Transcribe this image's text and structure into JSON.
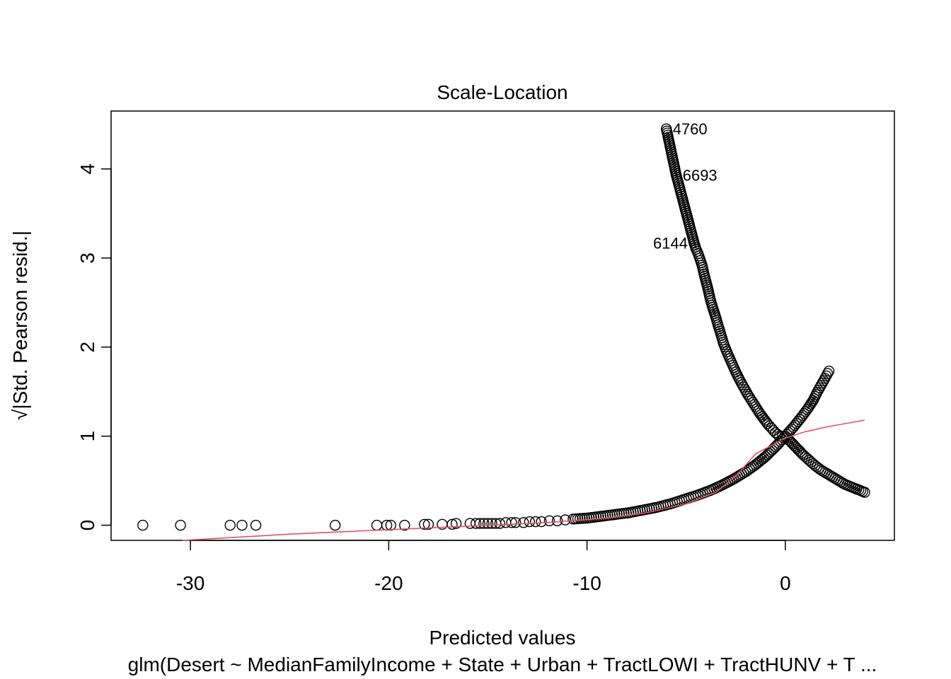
{
  "chart_data": {
    "type": "scatter",
    "title": "Scale-Location",
    "xlabel": "Predicted values",
    "ylabel": "√|Std. Pearson resid.|",
    "subtitle": "glm(Desert ~ MedianFamilyIncome + State + Urban + TractLOWI + TractHUNV + T ...",
    "xlim": [
      -34,
      5.5
    ],
    "ylim": [
      -0.17,
      4.65
    ],
    "xticks": [
      -30,
      -20,
      -10,
      0
    ],
    "yticks": [
      0,
      1,
      2,
      3,
      4
    ],
    "grid": false,
    "series": [
      {
        "type": "points",
        "x": [
          -32.4,
          -30.5,
          -28.0,
          -27.4,
          -26.7,
          -22.7,
          -20.6,
          -20.1,
          -19.9,
          -19.2,
          -18.2,
          -18.0,
          -17.3,
          -16.8,
          -16.6,
          -15.9,
          -15.6,
          -15.4,
          -15.2,
          -15.0,
          -14.8,
          -14.6,
          -14.4,
          -14.1,
          -13.8,
          -13.6,
          -13.2,
          -12.9,
          -12.6,
          -12.3,
          -11.9,
          -11.5,
          -11.1
        ],
        "y": [
          0.0,
          0.0,
          0.0,
          0.0,
          0.0,
          0.0,
          0.0,
          0.0,
          0.0,
          0.0,
          0.01,
          0.01,
          0.01,
          0.01,
          0.02,
          0.02,
          0.02,
          0.02,
          0.02,
          0.02,
          0.02,
          0.02,
          0.02,
          0.03,
          0.03,
          0.03,
          0.03,
          0.04,
          0.04,
          0.04,
          0.05,
          0.05,
          0.06
        ]
      },
      {
        "type": "points",
        "x": [
          -6.0,
          -5.5,
          -4.6,
          -4.5,
          -4.4,
          -4.2,
          -4.1,
          -3.9,
          -3.8,
          -3.7,
          -3.6,
          -3.5,
          -3.4,
          -3.3,
          -3.1,
          -2.9,
          -2.7,
          -2.5,
          -2.3,
          -2.1,
          -1.9,
          -1.7,
          -1.5,
          -1.3,
          -1.1,
          -0.9,
          -0.7,
          -0.5,
          -0.3,
          0.0,
          0.3,
          0.6,
          0.9,
          1.2,
          1.5,
          1.8,
          2.1,
          2.4,
          2.7,
          3.0,
          4.0
        ],
        "y": [
          4.45,
          3.93,
          3.17,
          3.1,
          3.05,
          2.92,
          2.82,
          2.65,
          2.55,
          2.47,
          2.4,
          2.33,
          2.25,
          2.18,
          2.03,
          1.92,
          1.82,
          1.72,
          1.63,
          1.55,
          1.47,
          1.4,
          1.33,
          1.26,
          1.2,
          1.14,
          1.09,
          1.04,
          1.0,
          1.0,
          0.93,
          0.86,
          0.79,
          0.73,
          0.67,
          0.62,
          0.58,
          0.54,
          0.5,
          0.46,
          0.37
        ]
      },
      {
        "type": "points",
        "x": [
          -10.7,
          -10.0,
          -9.3,
          -8.6,
          -7.9,
          -7.2,
          -6.5,
          -5.8,
          -5.1,
          -4.4,
          -3.8,
          -3.2,
          -2.6,
          -2.0,
          -1.5,
          -1.0,
          -0.5,
          0.0,
          0.4,
          0.8,
          1.1,
          1.4,
          1.6,
          1.8,
          2.0,
          2.2
        ],
        "y": [
          0.07,
          0.08,
          0.1,
          0.12,
          0.14,
          0.17,
          0.2,
          0.24,
          0.29,
          0.34,
          0.39,
          0.45,
          0.52,
          0.6,
          0.68,
          0.77,
          0.88,
          1.0,
          1.1,
          1.21,
          1.3,
          1.4,
          1.49,
          1.57,
          1.65,
          1.73
        ]
      }
    ],
    "smooth_line": {
      "color": "#DF536B",
      "x": [
        -30.4,
        -25.0,
        -20.0,
        -16.0,
        -12.0,
        -9.0,
        -7.0,
        -5.0,
        -3.5,
        -2.5,
        -1.5,
        0.0,
        1.0,
        2.0,
        3.0,
        4.0
      ],
      "y": [
        -0.17,
        -0.1,
        -0.05,
        -0.01,
        0.03,
        0.08,
        0.14,
        0.24,
        0.37,
        0.55,
        0.8,
        0.98,
        1.05,
        1.1,
        1.14,
        1.18
      ]
    },
    "annotations": [
      {
        "label": "4760",
        "x": -6.0,
        "y": 4.45,
        "side": "right"
      },
      {
        "label": "6693",
        "x": -5.5,
        "y": 3.93,
        "side": "right"
      },
      {
        "label": "6144",
        "x": -4.6,
        "y": 3.17,
        "side": "left"
      }
    ]
  }
}
